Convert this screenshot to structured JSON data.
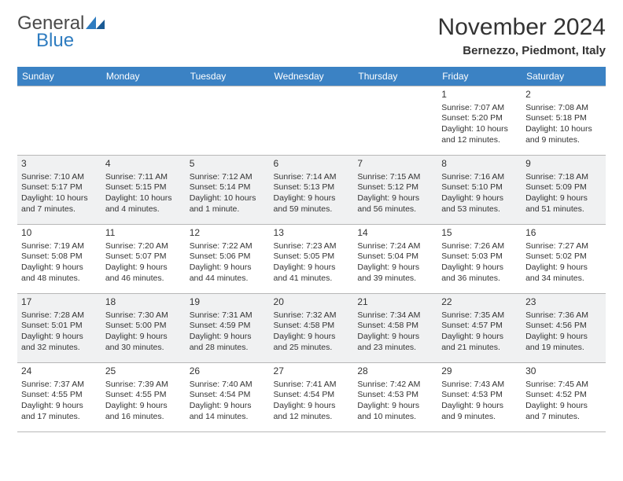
{
  "brand": {
    "word1": "General",
    "word2": "Blue",
    "word1_color": "#4a4a4a",
    "word2_color": "#2e7cc0",
    "mark_color": "#2e7cc0"
  },
  "header": {
    "title": "November 2024",
    "location": "Bernezzo, Piedmont, Italy"
  },
  "styling": {
    "header_bg": "#3b82c4",
    "header_text": "#ffffff",
    "alt_row_bg": "#f0f1f2",
    "border_color": "#b8b8b8",
    "body_text": "#333333",
    "title_fontsize": 30,
    "location_fontsize": 15,
    "dayheader_fontsize": 12,
    "cell_fontsize": 10.5
  },
  "day_names": [
    "Sunday",
    "Monday",
    "Tuesday",
    "Wednesday",
    "Thursday",
    "Friday",
    "Saturday"
  ],
  "weeks": [
    {
      "alt": false,
      "days": [
        {
          "num": "",
          "sunrise": "",
          "sunset": "",
          "daylight": ""
        },
        {
          "num": "",
          "sunrise": "",
          "sunset": "",
          "daylight": ""
        },
        {
          "num": "",
          "sunrise": "",
          "sunset": "",
          "daylight": ""
        },
        {
          "num": "",
          "sunrise": "",
          "sunset": "",
          "daylight": ""
        },
        {
          "num": "",
          "sunrise": "",
          "sunset": "",
          "daylight": ""
        },
        {
          "num": "1",
          "sunrise": "Sunrise: 7:07 AM",
          "sunset": "Sunset: 5:20 PM",
          "daylight": "Daylight: 10 hours and 12 minutes."
        },
        {
          "num": "2",
          "sunrise": "Sunrise: 7:08 AM",
          "sunset": "Sunset: 5:18 PM",
          "daylight": "Daylight: 10 hours and 9 minutes."
        }
      ]
    },
    {
      "alt": true,
      "days": [
        {
          "num": "3",
          "sunrise": "Sunrise: 7:10 AM",
          "sunset": "Sunset: 5:17 PM",
          "daylight": "Daylight: 10 hours and 7 minutes."
        },
        {
          "num": "4",
          "sunrise": "Sunrise: 7:11 AM",
          "sunset": "Sunset: 5:15 PM",
          "daylight": "Daylight: 10 hours and 4 minutes."
        },
        {
          "num": "5",
          "sunrise": "Sunrise: 7:12 AM",
          "sunset": "Sunset: 5:14 PM",
          "daylight": "Daylight: 10 hours and 1 minute."
        },
        {
          "num": "6",
          "sunrise": "Sunrise: 7:14 AM",
          "sunset": "Sunset: 5:13 PM",
          "daylight": "Daylight: 9 hours and 59 minutes."
        },
        {
          "num": "7",
          "sunrise": "Sunrise: 7:15 AM",
          "sunset": "Sunset: 5:12 PM",
          "daylight": "Daylight: 9 hours and 56 minutes."
        },
        {
          "num": "8",
          "sunrise": "Sunrise: 7:16 AM",
          "sunset": "Sunset: 5:10 PM",
          "daylight": "Daylight: 9 hours and 53 minutes."
        },
        {
          "num": "9",
          "sunrise": "Sunrise: 7:18 AM",
          "sunset": "Sunset: 5:09 PM",
          "daylight": "Daylight: 9 hours and 51 minutes."
        }
      ]
    },
    {
      "alt": false,
      "days": [
        {
          "num": "10",
          "sunrise": "Sunrise: 7:19 AM",
          "sunset": "Sunset: 5:08 PM",
          "daylight": "Daylight: 9 hours and 48 minutes."
        },
        {
          "num": "11",
          "sunrise": "Sunrise: 7:20 AM",
          "sunset": "Sunset: 5:07 PM",
          "daylight": "Daylight: 9 hours and 46 minutes."
        },
        {
          "num": "12",
          "sunrise": "Sunrise: 7:22 AM",
          "sunset": "Sunset: 5:06 PM",
          "daylight": "Daylight: 9 hours and 44 minutes."
        },
        {
          "num": "13",
          "sunrise": "Sunrise: 7:23 AM",
          "sunset": "Sunset: 5:05 PM",
          "daylight": "Daylight: 9 hours and 41 minutes."
        },
        {
          "num": "14",
          "sunrise": "Sunrise: 7:24 AM",
          "sunset": "Sunset: 5:04 PM",
          "daylight": "Daylight: 9 hours and 39 minutes."
        },
        {
          "num": "15",
          "sunrise": "Sunrise: 7:26 AM",
          "sunset": "Sunset: 5:03 PM",
          "daylight": "Daylight: 9 hours and 36 minutes."
        },
        {
          "num": "16",
          "sunrise": "Sunrise: 7:27 AM",
          "sunset": "Sunset: 5:02 PM",
          "daylight": "Daylight: 9 hours and 34 minutes."
        }
      ]
    },
    {
      "alt": true,
      "days": [
        {
          "num": "17",
          "sunrise": "Sunrise: 7:28 AM",
          "sunset": "Sunset: 5:01 PM",
          "daylight": "Daylight: 9 hours and 32 minutes."
        },
        {
          "num": "18",
          "sunrise": "Sunrise: 7:30 AM",
          "sunset": "Sunset: 5:00 PM",
          "daylight": "Daylight: 9 hours and 30 minutes."
        },
        {
          "num": "19",
          "sunrise": "Sunrise: 7:31 AM",
          "sunset": "Sunset: 4:59 PM",
          "daylight": "Daylight: 9 hours and 28 minutes."
        },
        {
          "num": "20",
          "sunrise": "Sunrise: 7:32 AM",
          "sunset": "Sunset: 4:58 PM",
          "daylight": "Daylight: 9 hours and 25 minutes."
        },
        {
          "num": "21",
          "sunrise": "Sunrise: 7:34 AM",
          "sunset": "Sunset: 4:58 PM",
          "daylight": "Daylight: 9 hours and 23 minutes."
        },
        {
          "num": "22",
          "sunrise": "Sunrise: 7:35 AM",
          "sunset": "Sunset: 4:57 PM",
          "daylight": "Daylight: 9 hours and 21 minutes."
        },
        {
          "num": "23",
          "sunrise": "Sunrise: 7:36 AM",
          "sunset": "Sunset: 4:56 PM",
          "daylight": "Daylight: 9 hours and 19 minutes."
        }
      ]
    },
    {
      "alt": false,
      "days": [
        {
          "num": "24",
          "sunrise": "Sunrise: 7:37 AM",
          "sunset": "Sunset: 4:55 PM",
          "daylight": "Daylight: 9 hours and 17 minutes."
        },
        {
          "num": "25",
          "sunrise": "Sunrise: 7:39 AM",
          "sunset": "Sunset: 4:55 PM",
          "daylight": "Daylight: 9 hours and 16 minutes."
        },
        {
          "num": "26",
          "sunrise": "Sunrise: 7:40 AM",
          "sunset": "Sunset: 4:54 PM",
          "daylight": "Daylight: 9 hours and 14 minutes."
        },
        {
          "num": "27",
          "sunrise": "Sunrise: 7:41 AM",
          "sunset": "Sunset: 4:54 PM",
          "daylight": "Daylight: 9 hours and 12 minutes."
        },
        {
          "num": "28",
          "sunrise": "Sunrise: 7:42 AM",
          "sunset": "Sunset: 4:53 PM",
          "daylight": "Daylight: 9 hours and 10 minutes."
        },
        {
          "num": "29",
          "sunrise": "Sunrise: 7:43 AM",
          "sunset": "Sunset: 4:53 PM",
          "daylight": "Daylight: 9 hours and 9 minutes."
        },
        {
          "num": "30",
          "sunrise": "Sunrise: 7:45 AM",
          "sunset": "Sunset: 4:52 PM",
          "daylight": "Daylight: 9 hours and 7 minutes."
        }
      ]
    }
  ]
}
